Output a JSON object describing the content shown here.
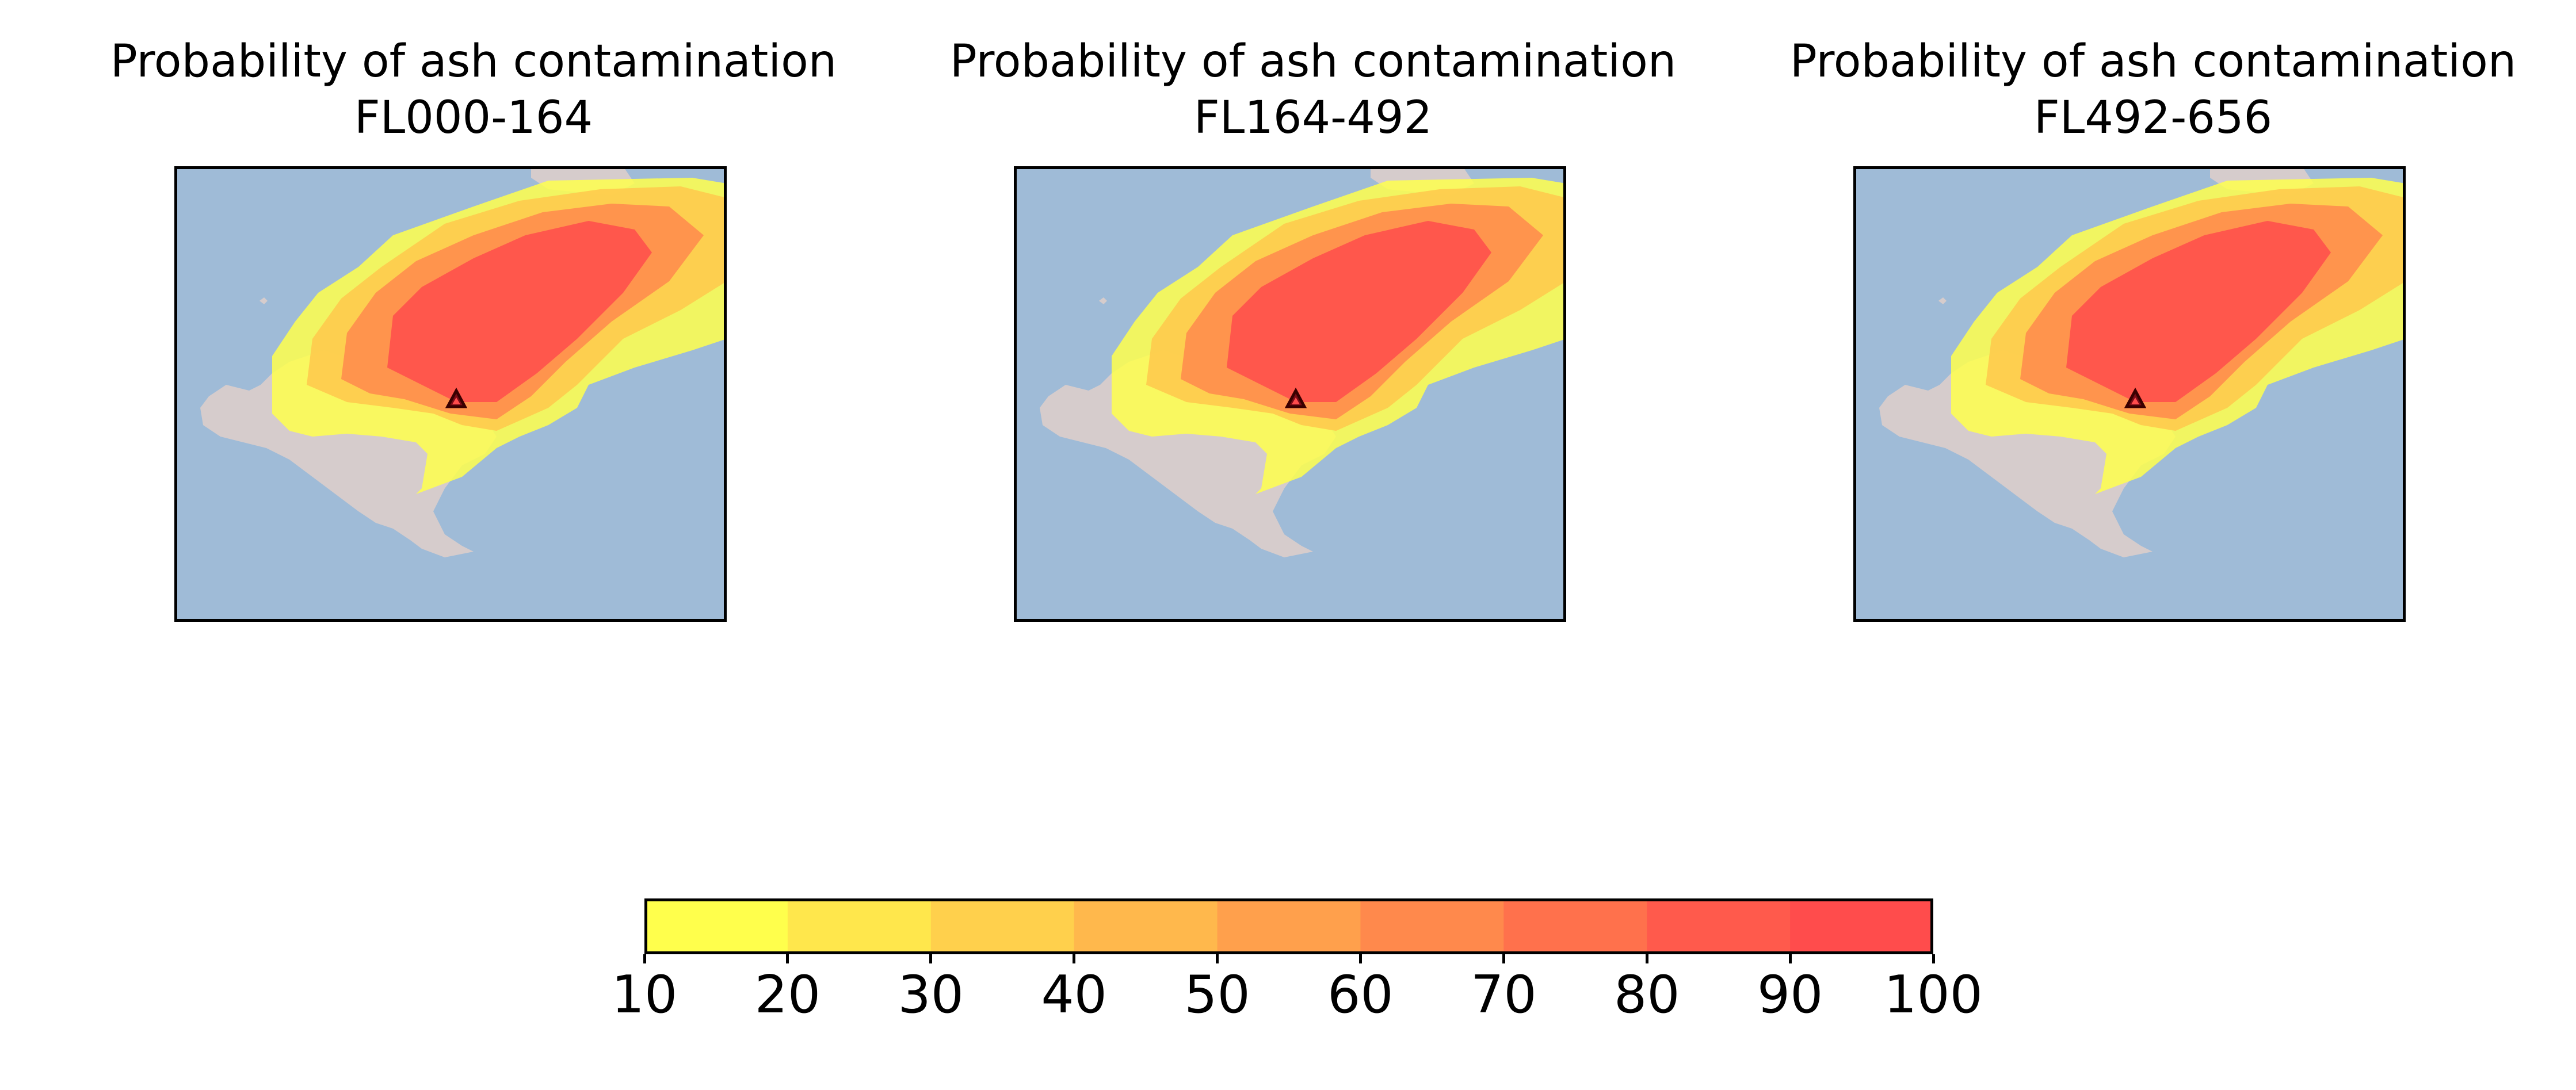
{
  "panels": [
    {
      "title": "Probability of ash contamination",
      "subtitle": "FL000-164"
    },
    {
      "title": "Probability of ash contamination",
      "subtitle": "FL164-492"
    },
    {
      "title": "Probability of ash contamination",
      "subtitle": "FL492-656"
    }
  ],
  "map": {
    "sea_color": "#9fbbd7",
    "land_color": "#d6cccc",
    "volcano_marker": "triangle",
    "volcano_marker_color": "#7a0b16"
  },
  "colorbar": {
    "boundaries": [
      10,
      20,
      30,
      40,
      50,
      60,
      70,
      80,
      90,
      100
    ],
    "tick_labels": [
      "10",
      "20",
      "30",
      "40",
      "50",
      "60",
      "70",
      "80",
      "90",
      "100"
    ],
    "colors": [
      "#ffff4c",
      "#ffe74c",
      "#ffd04c",
      "#ffb84c",
      "#ffa04c",
      "#ff894c",
      "#ff714c",
      "#ff5a4c",
      "#ff4c4c"
    ]
  }
}
